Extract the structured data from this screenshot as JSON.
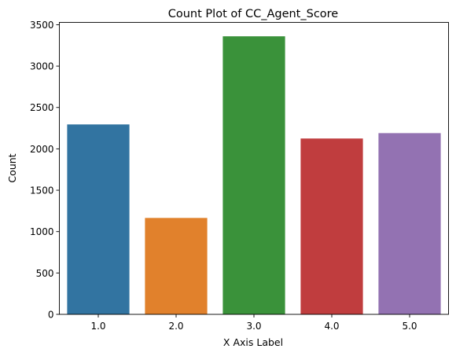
{
  "chart_data": {
    "type": "bar",
    "title": "Count Plot of CC_Agent_Score",
    "xlabel": "X Axis Label",
    "ylabel": "Count",
    "categories": [
      "1.0",
      "2.0",
      "3.0",
      "4.0",
      "5.0"
    ],
    "values": [
      2295,
      1165,
      3360,
      2125,
      2190
    ],
    "colors": [
      "#3274a1",
      "#e1812c",
      "#3a923a",
      "#c03d3e",
      "#9372b2"
    ],
    "ylim": [
      0,
      3528
    ],
    "yticks": [
      0,
      500,
      1000,
      1500,
      2000,
      2500,
      3000,
      3500
    ],
    "grid": false,
    "legend": "none"
  }
}
